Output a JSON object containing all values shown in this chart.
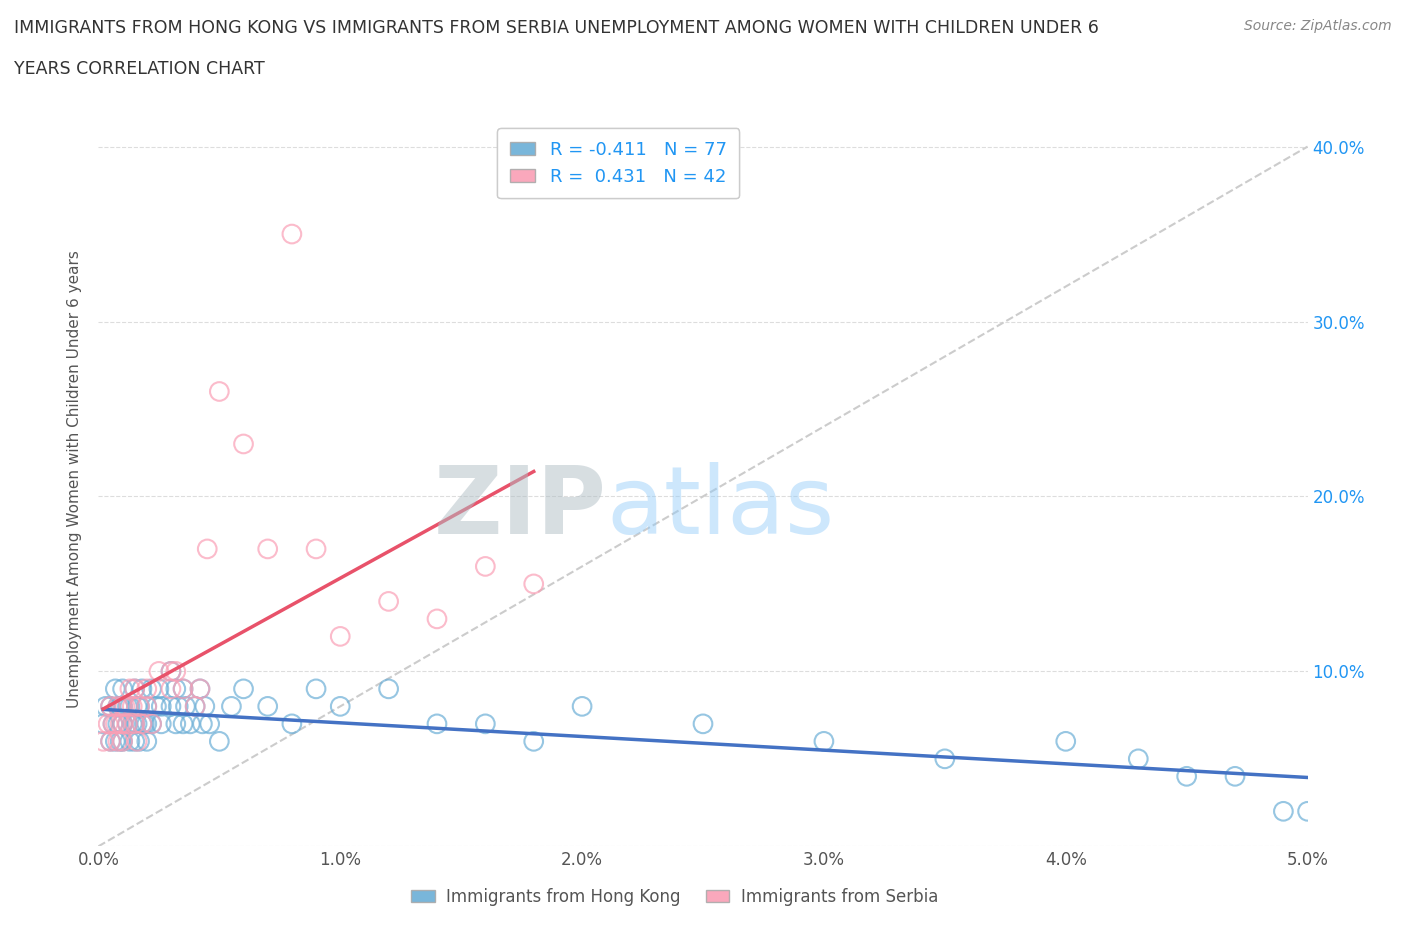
{
  "title_line1": "IMMIGRANTS FROM HONG KONG VS IMMIGRANTS FROM SERBIA UNEMPLOYMENT AMONG WOMEN WITH CHILDREN UNDER 6",
  "title_line2": "YEARS CORRELATION CHART",
  "source_text": "Source: ZipAtlas.com",
  "ylabel": "Unemployment Among Women with Children Under 6 years",
  "legend_bottom": [
    "Immigrants from Hong Kong",
    "Immigrants from Serbia"
  ],
  "r_hk": -0.411,
  "n_hk": 77,
  "r_sr": 0.431,
  "n_sr": 42,
  "color_hk": "#6baed6",
  "color_sr": "#fa9fb5",
  "trendline_diag": "#cccccc",
  "watermark_zip": "ZIP",
  "watermark_atlas": "atlas",
  "xlim": [
    0.0,
    0.05
  ],
  "ylim": [
    0.0,
    0.42
  ],
  "xticks": [
    0.0,
    0.01,
    0.02,
    0.03,
    0.04,
    0.05
  ],
  "yticks": [
    0.0,
    0.1,
    0.2,
    0.3,
    0.4
  ],
  "xticklabels": [
    "0.0%",
    "1.0%",
    "2.0%",
    "3.0%",
    "4.0%",
    "5.0%"
  ],
  "yticklabels_right": [
    "",
    "10.0%",
    "20.0%",
    "30.0%",
    "40.0%"
  ],
  "hk_x": [
    0.0002,
    0.0003,
    0.0005,
    0.0005,
    0.0006,
    0.0007,
    0.0007,
    0.0008,
    0.0008,
    0.0009,
    0.0009,
    0.001,
    0.001,
    0.001,
    0.001,
    0.001,
    0.0012,
    0.0012,
    0.0013,
    0.0013,
    0.0014,
    0.0015,
    0.0015,
    0.0015,
    0.0016,
    0.0016,
    0.0017,
    0.0017,
    0.0018,
    0.0018,
    0.0019,
    0.002,
    0.002,
    0.002,
    0.0022,
    0.0022,
    0.0024,
    0.0025,
    0.0026,
    0.0026,
    0.003,
    0.003,
    0.0032,
    0.0032,
    0.0033,
    0.0035,
    0.0035,
    0.0036,
    0.0038,
    0.004,
    0.0042,
    0.0043,
    0.0044,
    0.0046,
    0.005,
    0.0055,
    0.006,
    0.007,
    0.008,
    0.009,
    0.01,
    0.012,
    0.014,
    0.016,
    0.018,
    0.02,
    0.025,
    0.03,
    0.035,
    0.04,
    0.043,
    0.045,
    0.047,
    0.049,
    0.05
  ],
  "hk_y": [
    0.07,
    0.08,
    0.06,
    0.08,
    0.07,
    0.06,
    0.09,
    0.07,
    0.08,
    0.06,
    0.08,
    0.07,
    0.08,
    0.06,
    0.09,
    0.07,
    0.08,
    0.07,
    0.06,
    0.08,
    0.07,
    0.07,
    0.09,
    0.06,
    0.08,
    0.07,
    0.06,
    0.08,
    0.07,
    0.09,
    0.07,
    0.08,
    0.07,
    0.06,
    0.09,
    0.07,
    0.08,
    0.09,
    0.07,
    0.08,
    0.1,
    0.08,
    0.09,
    0.07,
    0.08,
    0.09,
    0.07,
    0.08,
    0.07,
    0.08,
    0.09,
    0.07,
    0.08,
    0.07,
    0.06,
    0.08,
    0.09,
    0.08,
    0.07,
    0.09,
    0.08,
    0.09,
    0.07,
    0.07,
    0.06,
    0.08,
    0.07,
    0.06,
    0.05,
    0.06,
    0.05,
    0.04,
    0.04,
    0.02,
    0.02
  ],
  "sr_x": [
    0.0002,
    0.0004,
    0.0005,
    0.0005,
    0.0006,
    0.0007,
    0.0008,
    0.0008,
    0.0009,
    0.001,
    0.001,
    0.001,
    0.0011,
    0.0012,
    0.0013,
    0.0014,
    0.0015,
    0.0015,
    0.0016,
    0.0017,
    0.0018,
    0.002,
    0.002,
    0.0022,
    0.0025,
    0.003,
    0.003,
    0.0032,
    0.0035,
    0.004,
    0.0042,
    0.0045,
    0.005,
    0.006,
    0.007,
    0.008,
    0.009,
    0.01,
    0.012,
    0.014,
    0.016,
    0.018
  ],
  "sr_y": [
    0.06,
    0.07,
    0.06,
    0.08,
    0.07,
    0.07,
    0.06,
    0.08,
    0.07,
    0.06,
    0.08,
    0.07,
    0.08,
    0.07,
    0.09,
    0.08,
    0.07,
    0.09,
    0.06,
    0.08,
    0.07,
    0.09,
    0.08,
    0.07,
    0.1,
    0.1,
    0.09,
    0.1,
    0.09,
    0.08,
    0.09,
    0.17,
    0.26,
    0.23,
    0.17,
    0.35,
    0.17,
    0.12,
    0.14,
    0.13,
    0.16,
    0.15
  ]
}
